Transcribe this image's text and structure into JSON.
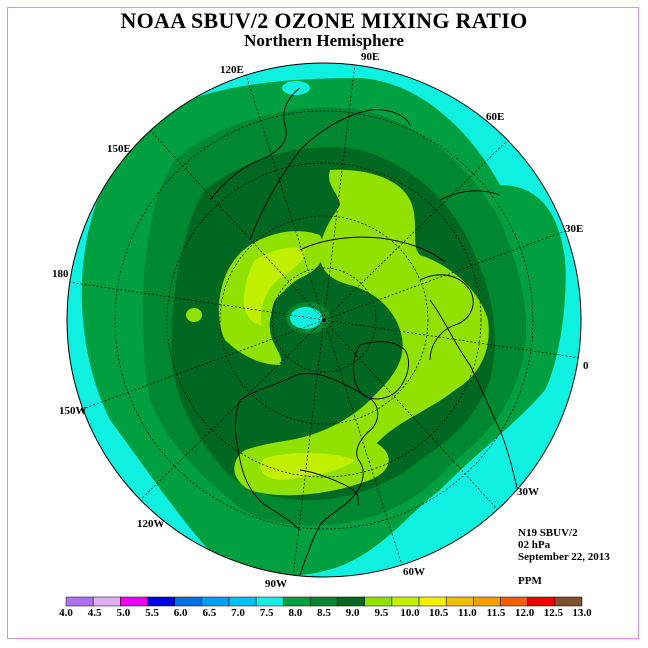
{
  "title": "NOAA SBUV/2 OZONE MIXING RATIO",
  "subtitle": "Northern Hemisphere",
  "longitude_labels": {
    "e90": "90E",
    "e120": "120E",
    "e60": "60E",
    "e150": "150E",
    "e30": "30E",
    "lon180": "180",
    "lon0": "0",
    "w150": "150W",
    "w30": "30W",
    "w120": "120W",
    "w60": "60W",
    "w90": "90W"
  },
  "info": {
    "satellite": "N19 SBUV/2",
    "pressure": "02 hPa",
    "date": "September 22, 2013",
    "units": "PPM"
  },
  "colorbar": {
    "ticks": [
      "4.0",
      "4.5",
      "5.0",
      "5.5",
      "6.0",
      "6.5",
      "7.0",
      "7.5",
      "8.0",
      "8.5",
      "9.0",
      "9.5",
      "10.0",
      "10.5",
      "11.0",
      "11.5",
      "12.0",
      "12.5",
      "13.0"
    ],
    "colors": [
      "#b070f0",
      "#e0b0f0",
      "#f000f0",
      "#0000f0",
      "#0070e0",
      "#00a0f0",
      "#00c0f0",
      "#10f0e0",
      "#00a040",
      "#008830",
      "#006820",
      "#90e000",
      "#c0f000",
      "#f0f000",
      "#f0c000",
      "#f0a000",
      "#f06000",
      "#f00000",
      "#805030"
    ]
  }
}
